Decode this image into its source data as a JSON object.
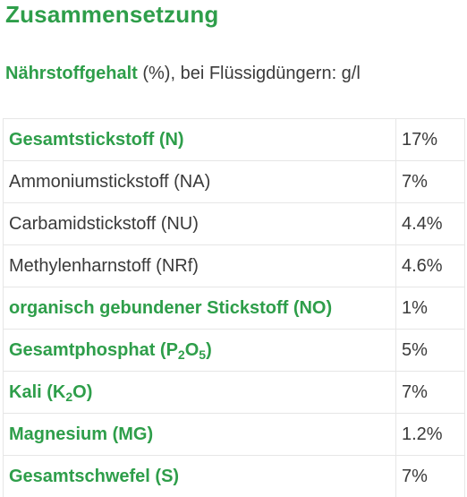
{
  "title": "Zusammensetzung",
  "subtitle": {
    "strong": "Nährstoffgehalt",
    "rest": " (%), bei Flüssigdüngern: g/l"
  },
  "rows": [
    {
      "name": "Gesamtstickstoff (N)",
      "value": "17%",
      "bold": true
    },
    {
      "name": "Ammoniumstickstoff (NA)",
      "value": "7%",
      "bold": false
    },
    {
      "name": "Carbamidstickstoff (NU)",
      "value": "4.4%",
      "bold": false
    },
    {
      "name": "Methylenharnstoff (NRf)",
      "value": "4.6%",
      "bold": false
    },
    {
      "name": "organisch gebundener Stickstoff (NO)",
      "value": "1%",
      "bold": true
    },
    {
      "name_parts": [
        "Gesamtphosphat (P",
        "2",
        "O",
        "5",
        ")"
      ],
      "value": "5%",
      "bold": true
    },
    {
      "name_parts": [
        "Kali (K",
        "2",
        "O)"
      ],
      "value": "7%",
      "bold": true
    },
    {
      "name": "Magnesium (MG)",
      "value": "1.2%",
      "bold": true
    },
    {
      "name": "Gesamtschwefel (S)",
      "value": "7%",
      "bold": true
    }
  ],
  "colors": {
    "accent_green": "#2e9e4a",
    "text": "#3a3a3a",
    "border": "#e6e6e6"
  }
}
